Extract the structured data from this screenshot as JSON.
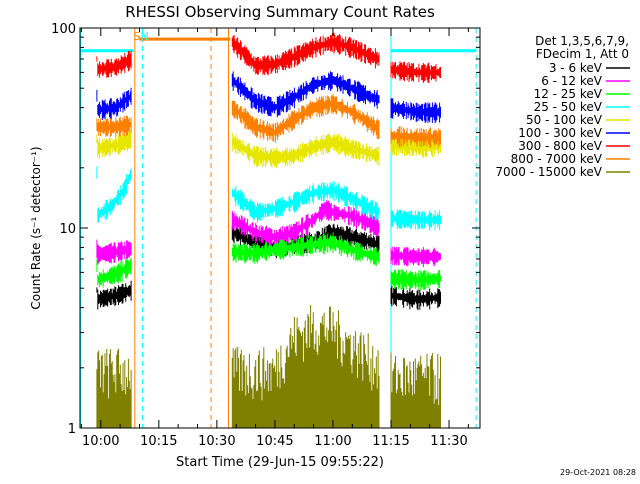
{
  "chart_data": {
    "type": "line",
    "title": "RHESSI Observing Summary Count Rates",
    "xlabel": "Start Time (29-Jun-15 09:55:22)",
    "ylabel": "Count Rate (s⁻¹ detector⁻¹)",
    "y_scale": "log",
    "ylim": [
      1,
      100
    ],
    "xlim_minutes": [
      -5.37,
      98.0
    ],
    "x_ticks": [
      {
        "label": "10:00",
        "t": 0
      },
      {
        "label": "10:15",
        "t": 15
      },
      {
        "label": "10:30",
        "t": 30
      },
      {
        "label": "10:45",
        "t": 45
      },
      {
        "label": "11:00",
        "t": 60
      },
      {
        "label": "11:15",
        "t": 75
      },
      {
        "label": "11:30",
        "t": 90
      }
    ],
    "y_ticks": [
      {
        "label": "1",
        "v": 1
      },
      {
        "label": "10",
        "v": 10
      },
      {
        "label": "100",
        "v": 100
      }
    ],
    "legend_header": [
      "Det 1,3,5,6,7,9,",
      "FDecim 1, Att 0"
    ],
    "legend_position": "top-right",
    "timestamp": "29-Oct-2021 08:28",
    "series": [
      {
        "name": "3 - 6 keV",
        "color": "#000000",
        "segments": [
          [
            [
              -1,
              4.4
            ],
            [
              4,
              4.6
            ],
            [
              8,
              4.9
            ]
          ],
          [
            [
              34,
              9.5
            ],
            [
              40,
              8.5
            ],
            [
              45,
              8.0
            ],
            [
              50,
              8.2
            ],
            [
              55,
              8.6
            ],
            [
              60,
              9.5
            ],
            [
              65,
              9.0
            ],
            [
              70,
              8.5
            ],
            [
              72,
              8.2
            ]
          ],
          [
            [
              75,
              4.6
            ],
            [
              82,
              4.4
            ],
            [
              88,
              4.5
            ]
          ]
        ]
      },
      {
        "name": "6 - 12 keV",
        "color": "#ff00ff",
        "segments": [
          [
            [
              -1,
              7.4
            ],
            [
              4,
              7.6
            ],
            [
              8,
              7.9
            ]
          ],
          [
            [
              34,
              11.0
            ],
            [
              40,
              9.5
            ],
            [
              45,
              9.0
            ],
            [
              50,
              9.5
            ],
            [
              55,
              11.0
            ],
            [
              58,
              12.5
            ],
            [
              60,
              12.0
            ],
            [
              65,
              11.5
            ],
            [
              70,
              10.5
            ],
            [
              72,
              10.0
            ]
          ],
          [
            [
              75,
              7.3
            ],
            [
              82,
              7.2
            ],
            [
              88,
              7.2
            ]
          ]
        ]
      },
      {
        "name": "12 - 25 keV",
        "color": "#00ff00",
        "segments": [
          [
            [
              -1,
              5.5
            ],
            [
              4,
              5.9
            ],
            [
              8,
              6.5
            ]
          ],
          [
            [
              34,
              7.6
            ],
            [
              40,
              7.5
            ],
            [
              45,
              7.8
            ],
            [
              50,
              8.0
            ],
            [
              55,
              8.3
            ],
            [
              60,
              8.5
            ],
            [
              65,
              7.8
            ],
            [
              70,
              7.3
            ],
            [
              72,
              7.2
            ]
          ],
          [
            [
              75,
              5.6
            ],
            [
              82,
              5.5
            ],
            [
              88,
              5.6
            ]
          ]
        ]
      },
      {
        "name": "25 - 50 keV",
        "color": "#00ffff",
        "segments": [
          [
            [
              -1,
              11.5
            ],
            [
              3,
              13.0
            ],
            [
              6,
              15.5
            ],
            [
              8,
              19.0
            ]
          ],
          [
            [
              34,
              15.0
            ],
            [
              40,
              12.0
            ],
            [
              45,
              12.5
            ],
            [
              50,
              13.5
            ],
            [
              55,
              15.0
            ],
            [
              60,
              15.5
            ],
            [
              65,
              14.0
            ],
            [
              70,
              12.5
            ],
            [
              72,
              12.0
            ]
          ],
          [
            [
              75,
              11.2
            ],
            [
              82,
              11.0
            ],
            [
              88,
              11.0
            ]
          ]
        ]
      },
      {
        "name": "50 - 100 keV",
        "color": "#e6e600",
        "segments": [
          [
            [
              -1,
              25.0
            ],
            [
              4,
              26.0
            ],
            [
              8,
              28.0
            ]
          ],
          [
            [
              34,
              27.0
            ],
            [
              40,
              23.0
            ],
            [
              45,
              22.5
            ],
            [
              50,
              23.0
            ],
            [
              55,
              25.5
            ],
            [
              60,
              27.0
            ],
            [
              65,
              25.0
            ],
            [
              70,
              23.5
            ],
            [
              72,
              23.0
            ]
          ],
          [
            [
              75,
              26.0
            ],
            [
              82,
              25.5
            ],
            [
              88,
              25.5
            ]
          ]
        ]
      },
      {
        "name": "100 - 300 keV",
        "color": "#0000ff",
        "segments": [
          [
            [
              -1,
              39.0
            ],
            [
              4,
              40.0
            ],
            [
              8,
              46.0
            ]
          ],
          [
            [
              34,
              55.0
            ],
            [
              40,
              43.0
            ],
            [
              45,
              40.0
            ],
            [
              50,
              45.0
            ],
            [
              55,
              52.0
            ],
            [
              60,
              55.0
            ],
            [
              65,
              50.0
            ],
            [
              70,
              45.0
            ],
            [
              72,
              44.0
            ]
          ],
          [
            [
              75,
              40.0
            ],
            [
              82,
              38.0
            ],
            [
              88,
              38.0
            ]
          ]
        ]
      },
      {
        "name": "300 - 800 keV",
        "color": "#ff0000",
        "segments": [
          [
            [
              -1,
              62.0
            ],
            [
              4,
              64.0
            ],
            [
              8,
              70.0
            ]
          ],
          [
            [
              34,
              85.0
            ],
            [
              40,
              65.0
            ],
            [
              45,
              66.0
            ],
            [
              50,
              72.0
            ],
            [
              55,
              80.0
            ],
            [
              60,
              85.0
            ],
            [
              65,
              80.0
            ],
            [
              70,
              72.0
            ],
            [
              72,
              70.0
            ]
          ],
          [
            [
              75,
              62.0
            ],
            [
              82,
              60.0
            ],
            [
              88,
              60.0
            ]
          ]
        ]
      },
      {
        "name": "800 - 7000 keV",
        "color": "#ff8000",
        "segments": [
          [
            [
              -1,
              32.0
            ],
            [
              4,
              32.0
            ],
            [
              8,
              33.0
            ]
          ],
          [
            [
              34,
              40.0
            ],
            [
              40,
              32.0
            ],
            [
              45,
              30.0
            ],
            [
              50,
              35.0
            ],
            [
              55,
              40.0
            ],
            [
              60,
              42.0
            ],
            [
              65,
              38.0
            ],
            [
              70,
              33.0
            ],
            [
              72,
              31.0
            ]
          ],
          [
            [
              75,
              29.0
            ],
            [
              82,
              28.5
            ],
            [
              88,
              28.5
            ]
          ]
        ]
      },
      {
        "name": "7000 - 15000 keV",
        "color": "#808000",
        "segments": [
          [
            [
              -1,
              1.5
            ],
            [
              8,
              1.5
            ]
          ],
          [
            [
              34,
              1.5
            ],
            [
              45,
              1.5
            ],
            [
              50,
              2.2
            ],
            [
              55,
              2.5
            ],
            [
              60,
              2.4
            ],
            [
              65,
              2.0
            ],
            [
              70,
              1.7
            ],
            [
              72,
              1.6
            ]
          ],
          [
            [
              75,
              1.4
            ],
            [
              88,
              1.4
            ]
          ]
        ]
      }
    ],
    "attenuator_band": {
      "color": "#ff8000",
      "t_start": 10,
      "t_end": 33.5,
      "level": 88
    },
    "annotations": [
      {
        "label": "S",
        "color": "#ff8000",
        "t": 8.8
      },
      {
        "label": "N",
        "color": "#00ffff",
        "t": 10.8
      }
    ],
    "saa_bars": [
      {
        "t_start": -5.2,
        "t_end": 8.5,
        "level": 77
      },
      {
        "t_start": 75,
        "t_end": 97,
        "level": 77
      }
    ],
    "markers": [
      {
        "t": -5.2,
        "color": "#00ffff",
        "style": "solid"
      },
      {
        "t": 8.8,
        "color": "#ff8000",
        "style": "solid"
      },
      {
        "t": 10.8,
        "color": "#00ffff",
        "style": "dashed"
      },
      {
        "t": 28.5,
        "color": "#ff8000",
        "style": "dashed"
      },
      {
        "t": 33.0,
        "color": "#ff8000",
        "style": "solid"
      },
      {
        "t": 75.0,
        "color": "#00ffff",
        "style": "solid"
      },
      {
        "t": 97.0,
        "color": "#00ffff",
        "style": "dashed"
      }
    ]
  }
}
